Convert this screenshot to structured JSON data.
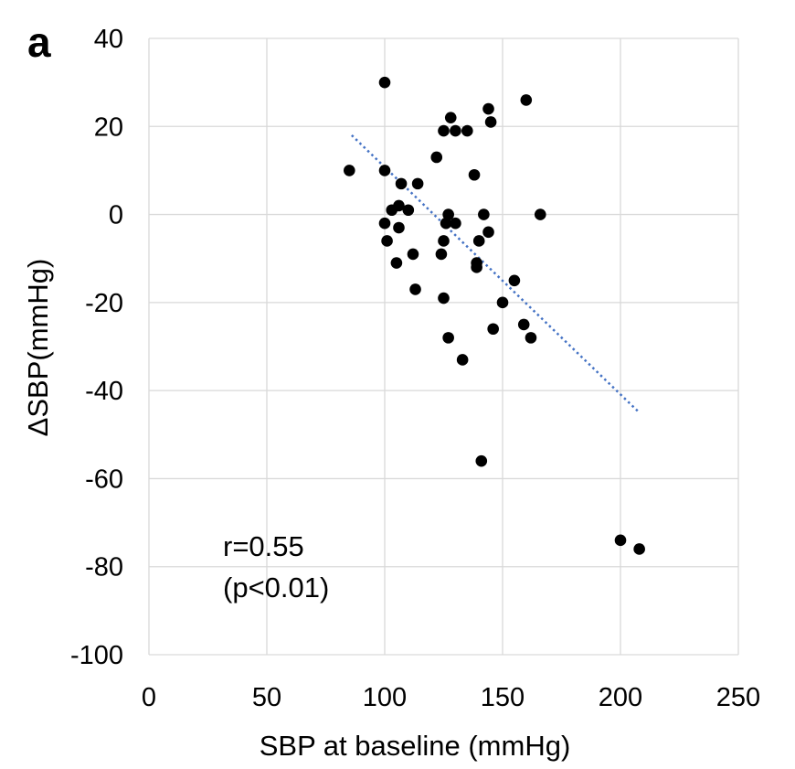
{
  "panel_label": "a",
  "chart_data": {
    "type": "scatter",
    "xlabel": "SBP at baseline (mmHg)",
    "ylabel": "ΔSBP(mmHg)",
    "xlim": [
      0,
      250
    ],
    "ylim": [
      -100,
      40
    ],
    "x_ticks": [
      0,
      50,
      100,
      150,
      200,
      250
    ],
    "y_ticks": [
      40,
      20,
      0,
      -20,
      -40,
      -60,
      -80,
      -100
    ],
    "x_tick_labels": [
      "0",
      "50",
      "100",
      "150",
      "200",
      "250"
    ],
    "y_tick_labels": [
      "40",
      "20",
      "0",
      "-20",
      "-40",
      "-60",
      "-80",
      "-100"
    ],
    "grid": true,
    "marker_color": "#000000",
    "trendline_color": "#4472c4",
    "series": [
      {
        "points": [
          [
            85,
            10
          ],
          [
            100,
            30
          ],
          [
            100,
            10
          ],
          [
            100,
            -2
          ],
          [
            101,
            -6
          ],
          [
            103,
            1
          ],
          [
            105,
            -11
          ],
          [
            106,
            2
          ],
          [
            106,
            -3
          ],
          [
            107,
            7
          ],
          [
            110,
            1
          ],
          [
            112,
            -9
          ],
          [
            113,
            -17
          ],
          [
            114,
            7
          ],
          [
            122,
            13
          ],
          [
            124,
            -9
          ],
          [
            125,
            19
          ],
          [
            125,
            -6
          ],
          [
            125,
            -19
          ],
          [
            126,
            -2
          ],
          [
            127,
            0
          ],
          [
            127,
            -28
          ],
          [
            128,
            22
          ],
          [
            130,
            19
          ],
          [
            130,
            -2
          ],
          [
            133,
            -33
          ],
          [
            135,
            19
          ],
          [
            138,
            9
          ],
          [
            139,
            -11
          ],
          [
            139,
            -12
          ],
          [
            140,
            -6
          ],
          [
            141,
            -56
          ],
          [
            142,
            0
          ],
          [
            144,
            24
          ],
          [
            144,
            -4
          ],
          [
            145,
            21
          ],
          [
            146,
            -26
          ],
          [
            150,
            -20
          ],
          [
            155,
            -15
          ],
          [
            159,
            -25
          ],
          [
            160,
            26
          ],
          [
            162,
            -28
          ],
          [
            166,
            0
          ],
          [
            200,
            -74
          ],
          [
            208,
            -76
          ]
        ]
      }
    ],
    "trendline": {
      "x_start": 86,
      "y_start": 18,
      "x_end": 208,
      "y_end": -45
    },
    "annotations": [
      "r=0.55",
      "(p<0.01)"
    ]
  }
}
